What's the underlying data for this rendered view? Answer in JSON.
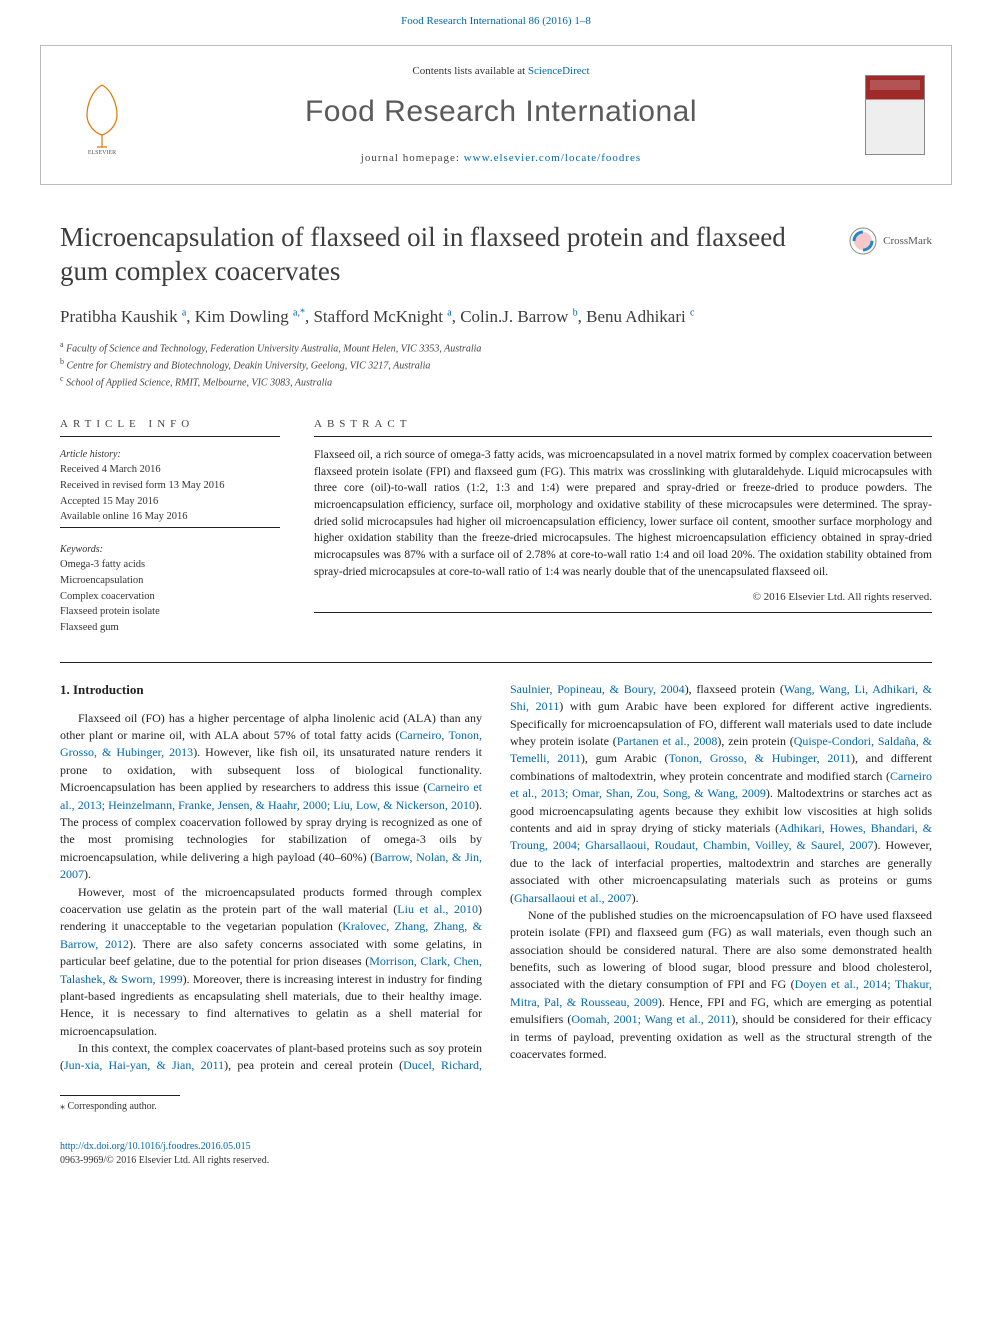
{
  "journal_ref_line": "Food Research International 86 (2016) 1–8",
  "banner": {
    "contents_prefix": "Contents lists available at ",
    "contents_link": "ScienceDirect",
    "journal_name": "Food Research International",
    "homepage_label": "journal homepage: ",
    "homepage_url": "www.elsevier.com/locate/foodres"
  },
  "crossmark_label": "CrossMark",
  "title": "Microencapsulation of flaxseed oil in flaxseed protein and flaxseed gum complex coacervates",
  "authors_html": "Pratibha Kaushik <sup>a</sup>, Kim Dowling <sup>a,*</sup>, Stafford McKnight <sup>a</sup>, Colin.J. Barrow <sup>b</sup>, Benu Adhikari <sup>c</sup>",
  "affiliations": [
    {
      "sup": "a",
      "text": "Faculty of Science and Technology, Federation University Australia, Mount Helen, VIC 3353, Australia"
    },
    {
      "sup": "b",
      "text": "Centre for Chemistry and Biotechnology, Deakin University, Geelong, VIC 3217, Australia"
    },
    {
      "sup": "c",
      "text": "School of Applied Science, RMIT, Melbourne, VIC 3083, Australia"
    }
  ],
  "article_info_heading": "ARTICLE INFO",
  "abstract_heading": "ABSTRACT",
  "history_label": "Article history:",
  "history": [
    "Received 4 March 2016",
    "Received in revised form 13 May 2016",
    "Accepted 15 May 2016",
    "Available online 16 May 2016"
  ],
  "keywords_label": "Keywords:",
  "keywords": [
    "Omega-3 fatty acids",
    "Microencapsulation",
    "Complex coacervation",
    "Flaxseed protein isolate",
    "Flaxseed gum"
  ],
  "abstract": "Flaxseed oil, a rich source of omega-3 fatty acids, was microencapsulated in a novel matrix formed by complex coacervation between flaxseed protein isolate (FPI) and flaxseed gum (FG). This matrix was crosslinking with glutaraldehyde. Liquid microcapsules with three core (oil)-to-wall ratios (1:2, 1:3 and 1:4) were prepared and spray-dried or freeze-dried to produce powders. The microencapsulation efficiency, surface oil, morphology and oxidative stability of these microcapsules were determined. The spray-dried solid microcapsules had higher oil microencapsulation efficiency, lower surface oil content, smoother surface morphology and higher oxidation stability than the freeze-dried microcapsules. The highest microencapsulation efficiency obtained in spray-dried microcapsules was 87% with a surface oil of 2.78% at core-to-wall ratio 1:4 and oil load 20%. The oxidation stability obtained from spray-dried microcapsules at core-to-wall ratio of 1:4 was nearly double that of the unencapsulated flaxseed oil.",
  "copyright": "© 2016 Elsevier Ltd. All rights reserved.",
  "section_heading": "1. Introduction",
  "para1_pre": "Flaxseed oil (FO) has a higher percentage of alpha linolenic acid (ALA) than any other plant or marine oil, with ALA about 57% of total fatty acids (",
  "para1_ref1": "Carneiro, Tonon, Grosso, & Hubinger, 2013",
  "para1_mid1": "). However, like fish oil, its unsaturated nature renders it prone to oxidation, with subsequent loss of biological functionality. Microencapsulation has been applied by researchers to address this issue (",
  "para1_ref2": "Carneiro et al., 2013; Heinzelmann, Franke, Jensen, & Haahr, 2000; Liu, Low, & Nickerson, 2010",
  "para1_mid2": "). The process of complex coacervation followed by spray drying is recognized as one of the most promising technologies for stabilization of omega-3 oils by microencapsulation, while delivering a high payload (40–60%) (",
  "para1_ref3": "Barrow, Nolan, & Jin, 2007",
  "para1_post": ").",
  "para2_pre": "However, most of the microencapsulated products formed through complex coacervation use gelatin as the protein part of the wall material (",
  "para2_ref1": "Liu et al., 2010",
  "para2_mid1": ") rendering it unacceptable to the vegetarian population (",
  "para2_ref2": "Kralovec, Zhang, Zhang, & Barrow, 2012",
  "para2_mid2": "). There are also safety concerns associated with some gelatins, in particular beef gelatine, due to the potential for prion diseases (",
  "para2_ref3": "Morrison, Clark, Chen, Talashek, & Sworn, 1999",
  "para2_post": "). Moreover, there is increasing interest in industry for finding plant-based ingredients as encapsulating shell materials, due to their healthy image. Hence, it is necessary to find alternatives to gelatin as a shell material for microencapsulation.",
  "para3_pre": "In this context, the complex coacervates of plant-based proteins such as soy protein (",
  "para3_ref1": "Jun-xia, Hai-yan, & Jian, 2011",
  "para3_mid1": "), pea protein and cereal protein (",
  "para3_ref2": "Ducel, Richard, Saulnier, Popineau, & Boury, 2004",
  "para3_mid2": "), flaxseed protein (",
  "para3_ref3": "Wang, Wang, Li, Adhikari, & Shi, 2011",
  "para3_mid3": ") with gum Arabic have been explored for different active ingredients. Specifically for microencapsulation of FO, different wall materials used to date include whey protein isolate (",
  "para3_ref4": "Partanen et al., 2008",
  "para3_mid4": "), zein protein (",
  "para3_ref5": "Quispe-Condori, Saldaña, & Temelli, 2011",
  "para3_mid5": "), gum Arabic (",
  "para3_ref6": "Tonon, Grosso, & Hubinger, 2011",
  "para3_mid6": "), and different combinations of maltodextrin, whey protein concentrate and modified starch (",
  "para3_ref7": "Carneiro et al., 2013; Omar, Shan, Zou, Song, & Wang, 2009",
  "para3_mid7": "). Maltodextrins or starches act as good microencapsulating agents because they exhibit low viscosities at high solids contents and aid in spray drying of sticky materials (",
  "para3_ref8": "Adhikari, Howes, Bhandari, & Troung, 2004; Gharsallaoui, Roudaut, Chambin, Voilley, & Saurel, 2007",
  "para3_mid8": "). However, due to the lack of interfacial properties, maltodextrin and starches are generally associated with other microencapsulating materials such as proteins or gums (",
  "para3_ref9": "Gharsallaoui et al., 2007",
  "para3_post": ").",
  "para4_pre": "None of the published studies on the microencapsulation of FO have used flaxseed protein isolate (FPI) and flaxseed gum (FG) as wall materials, even though such an association should be considered natural. There are also some demonstrated health benefits, such as lowering of blood sugar, blood pressure and blood cholesterol, associated with the dietary consumption of FPI and FG (",
  "para4_ref1": "Doyen et al., 2014; Thakur, Mitra, Pal, & Rousseau, 2009",
  "para4_mid1": "). Hence, FPI and FG, which are emerging as potential emulsifiers (",
  "para4_ref2": "Oomah, 2001; Wang et al., 2011",
  "para4_post": "), should be considered for their efficacy in terms of payload, preventing oxidation as well as the structural strength of the coacervates formed.",
  "footnote": "⁎ Corresponding author.",
  "doi": "http://dx.doi.org/10.1016/j.foodres.2016.05.015",
  "issn_line": "0963-9969/© 2016 Elsevier Ltd. All rights reserved.",
  "colors": {
    "link": "#0068b3",
    "heading": "#3d3d3d",
    "text": "#222",
    "rule": "#222"
  }
}
